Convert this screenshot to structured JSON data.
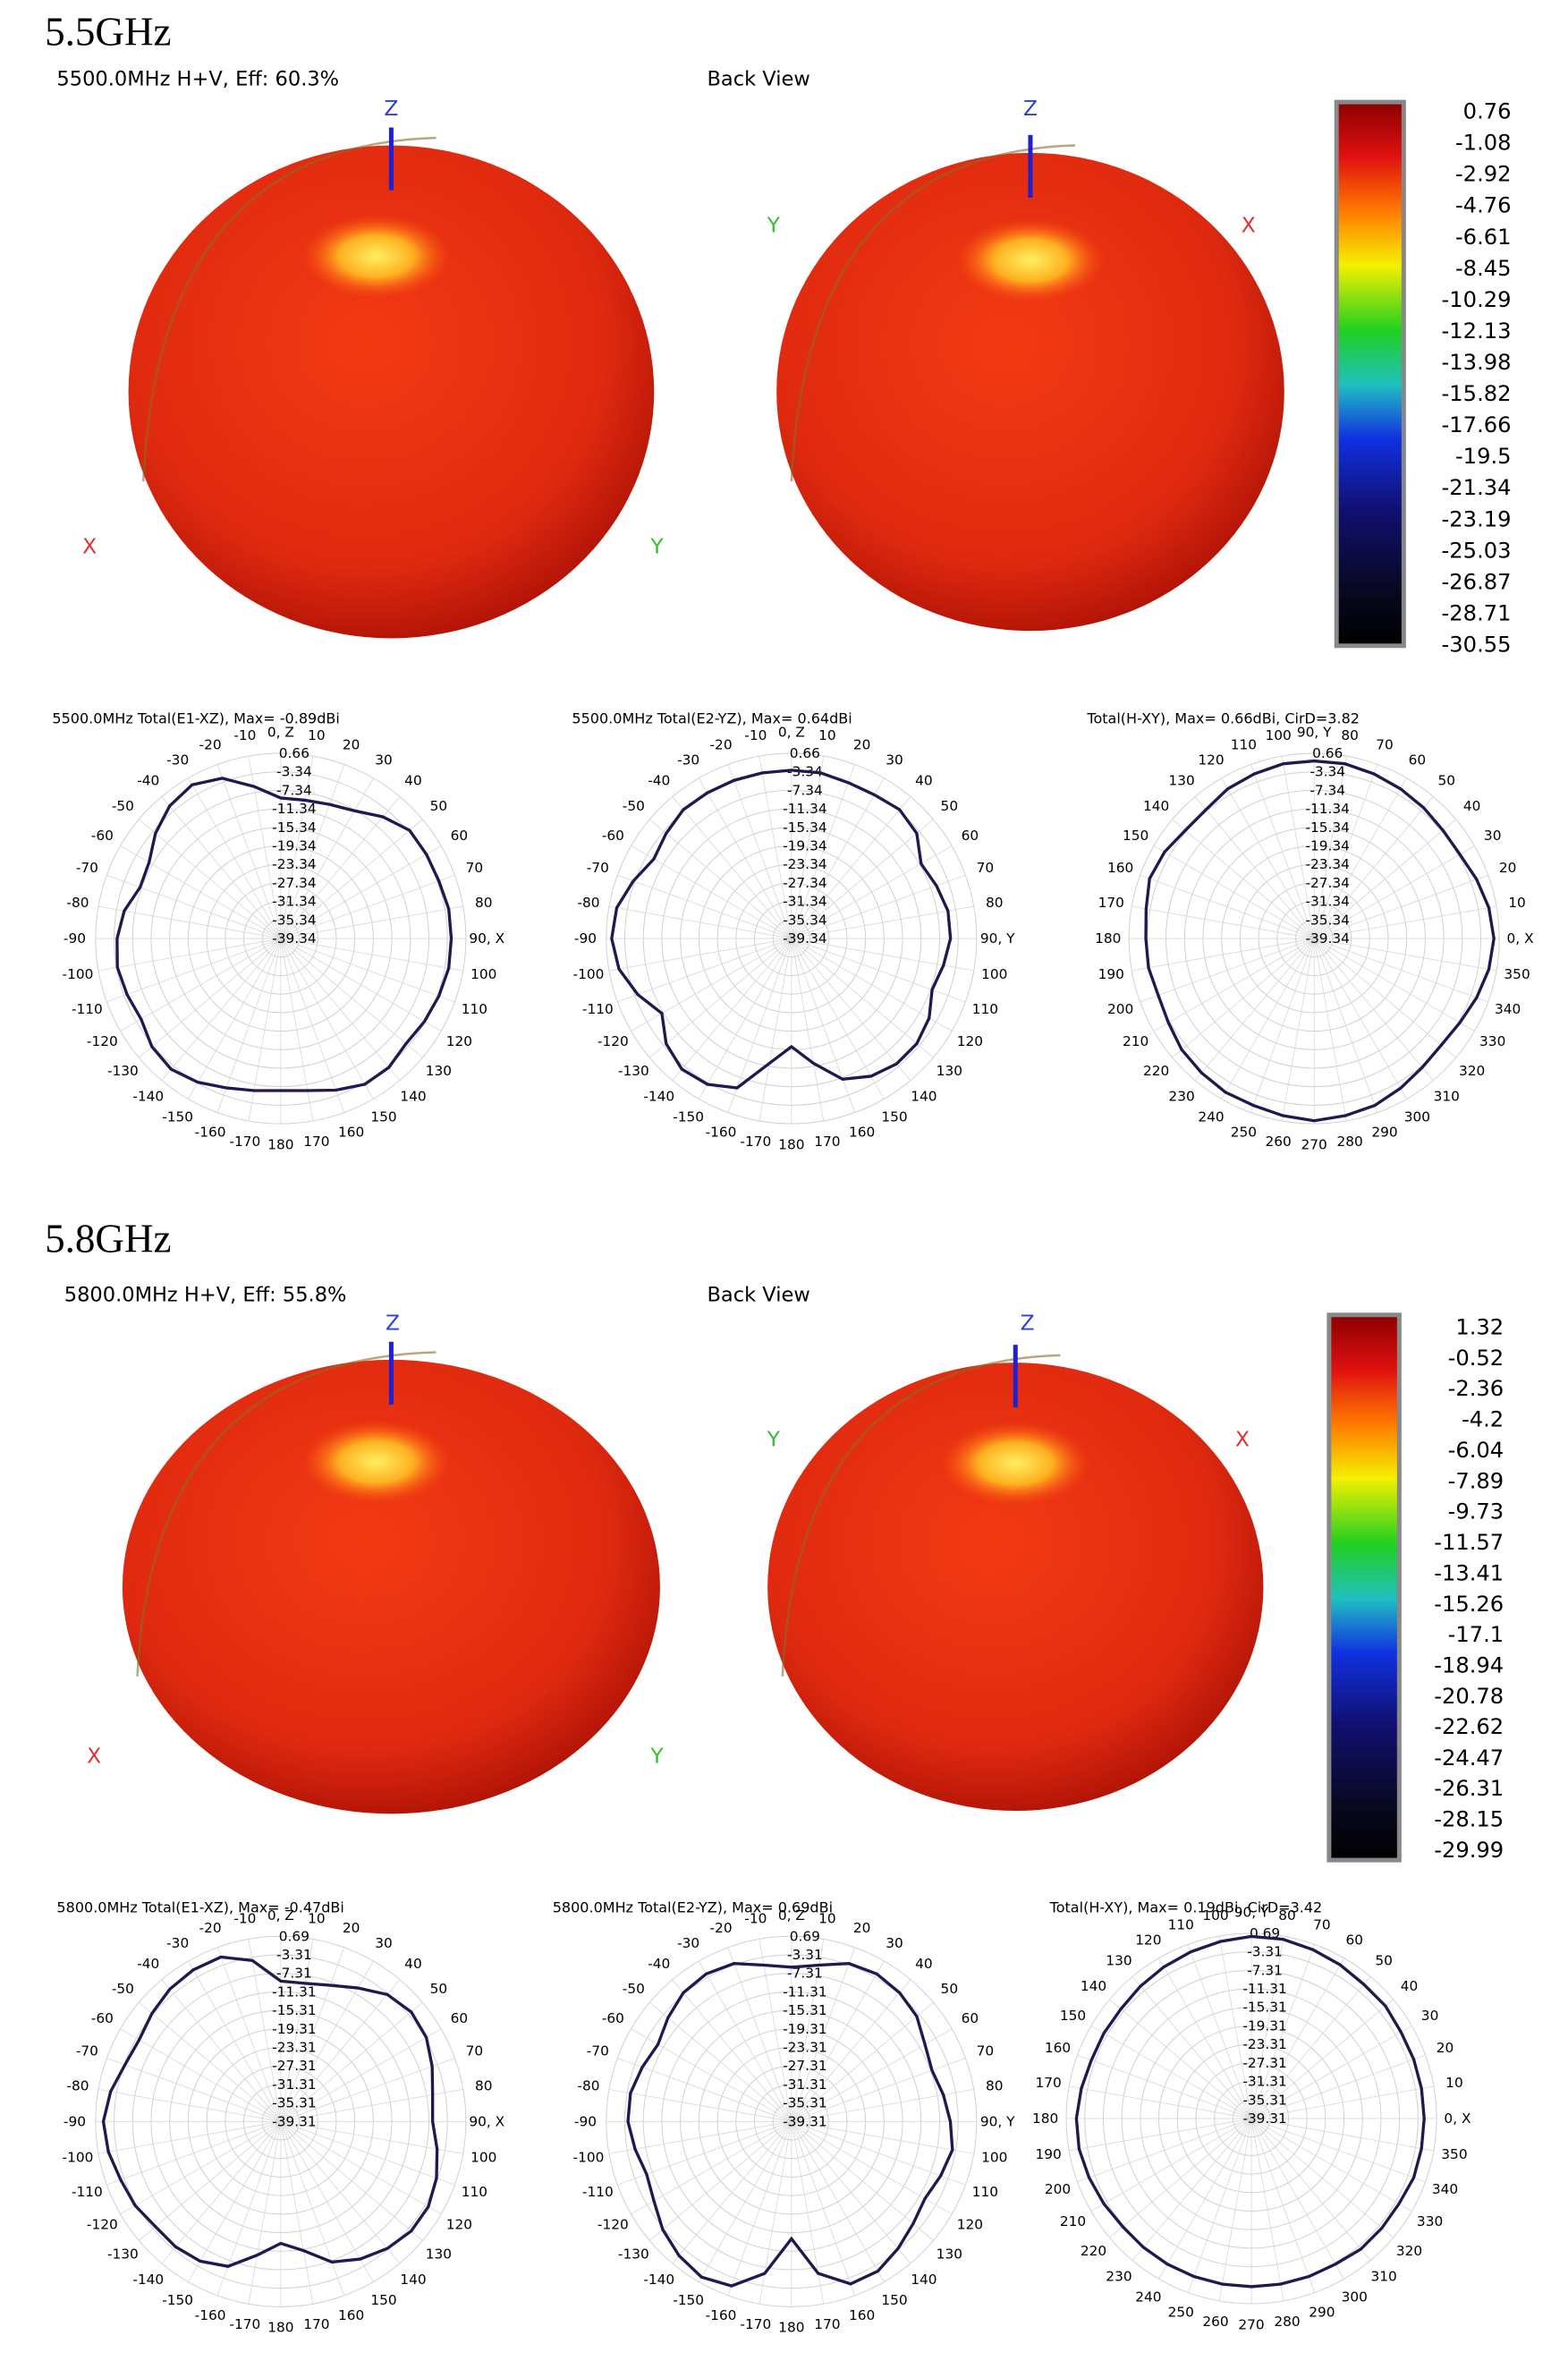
{
  "sections": [
    {
      "heading": "5.5GHz",
      "view_title": "5500.0MHz H+V, Eff: 60.3%",
      "back_title": "Back View",
      "axes": {
        "z": "Z",
        "x": "X",
        "y": "Y"
      },
      "colorbar": {
        "ticks": [
          0.76,
          -1.08,
          -2.92,
          -4.76,
          -6.61,
          -8.45,
          -10.29,
          -12.13,
          -13.98,
          -15.82,
          -17.66,
          -19.5,
          -21.34,
          -23.19,
          -25.03,
          -26.87,
          -28.71,
          -30.55
        ]
      }
    },
    {
      "heading": "5.8GHz",
      "view_title": "5800.0MHz H+V, Eff: 55.8%",
      "back_title": "Back View",
      "axes": {
        "z": "Z",
        "x": "X",
        "y": "Y"
      },
      "colorbar": {
        "ticks": [
          1.32,
          -0.52,
          -2.36,
          -4.2,
          -6.04,
          -7.89,
          -9.73,
          -11.57,
          -13.41,
          -15.26,
          -17.1,
          -18.94,
          -20.78,
          -22.62,
          -24.47,
          -26.31,
          -28.15,
          -29.99
        ]
      }
    }
  ],
  "chart_data": [
    {
      "type": "polar",
      "title": "5500.0MHz Total(E1-XZ), Max= -0.89dBi",
      "zero_location": "top",
      "direction": "clockwise",
      "color": "#1c1a4e",
      "grid": true,
      "rlim": [
        -39.34,
        0.66
      ],
      "rticks": [
        0.66,
        -3.34,
        -7.34,
        -11.34,
        -15.34,
        -19.34,
        -23.34,
        -27.34,
        -31.34,
        -35.34,
        -39.34
      ],
      "angle_ticks": [
        {
          "value": 0,
          "label": "0, Z"
        },
        10,
        20,
        30,
        40,
        50,
        60,
        70,
        80,
        {
          "value": 90,
          "label": "90, X"
        },
        100,
        110,
        120,
        130,
        140,
        150,
        160,
        170,
        180,
        -170,
        -160,
        -150,
        -140,
        -130,
        -120,
        -110,
        -100,
        -90,
        -80,
        -70,
        -60,
        -50,
        -40,
        -30,
        -20,
        -10
      ],
      "theta": [
        0,
        10,
        20,
        30,
        40,
        50,
        60,
        70,
        80,
        90,
        100,
        110,
        120,
        130,
        140,
        150,
        160,
        170,
        180,
        190,
        200,
        210,
        220,
        230,
        240,
        250,
        260,
        270,
        280,
        290,
        300,
        310,
        320,
        330,
        340,
        350
      ],
      "values": [
        -9,
        -9,
        -8.5,
        -7.5,
        -5,
        -3,
        -3,
        -3,
        -2.5,
        -2.5,
        -2.5,
        -3,
        -3.5,
        -4,
        -3,
        -3,
        -4.5,
        -6,
        -6.5,
        -6,
        -5,
        -3.5,
        -2.5,
        -3,
        -4.5,
        -4,
        -3.5,
        -4,
        -5,
        -7,
        -6.5,
        -4,
        -2,
        -1,
        -2.5,
        -6
      ]
    },
    {
      "type": "polar",
      "title": "5500.0MHz Total(E2-YZ), Max= 0.64dBi",
      "zero_location": "top",
      "direction": "clockwise",
      "color": "#1c1a4e",
      "grid": true,
      "rlim": [
        -39.34,
        0.66
      ],
      "rticks": [
        0.66,
        -3.34,
        -7.34,
        -11.34,
        -15.34,
        -19.34,
        -23.34,
        -27.34,
        -31.34,
        -35.34,
        -39.34
      ],
      "angle_ticks": [
        {
          "value": 0,
          "label": "0, Z"
        },
        10,
        20,
        30,
        40,
        50,
        60,
        70,
        80,
        {
          "value": 90,
          "label": "90, Y"
        },
        100,
        110,
        120,
        130,
        140,
        150,
        160,
        170,
        180,
        -170,
        -160,
        -150,
        -140,
        -130,
        -120,
        -110,
        -100,
        -90,
        -80,
        -70,
        -60,
        -50,
        -40,
        -30,
        -20,
        -10
      ],
      "theta": [
        0,
        10,
        20,
        30,
        40,
        50,
        60,
        70,
        80,
        90,
        100,
        110,
        120,
        130,
        140,
        150,
        160,
        170,
        180,
        190,
        200,
        210,
        220,
        230,
        240,
        250,
        260,
        270,
        280,
        290,
        300,
        310,
        320,
        330,
        340,
        350
      ],
      "values": [
        -3,
        -3,
        -3.5,
        -3.5,
        -3,
        -4,
        -7,
        -6,
        -5,
        -5,
        -6,
        -7,
        -5,
        -4,
        -4,
        -5,
        -7,
        -12,
        -16,
        -12,
        -5,
        -3,
        -2.5,
        -4,
        -7,
        -4,
        -1.5,
        -0.5,
        -1,
        -3,
        -5,
        -4,
        -3,
        -3,
        -3,
        -3
      ]
    },
    {
      "type": "polar",
      "title": "Total(H-XY), Max= 0.66dBi, CirD=3.82",
      "zero_location": "right",
      "direction": "counterclockwise",
      "color": "#1c1a4e",
      "grid": true,
      "rlim": [
        -39.34,
        0.66
      ],
      "rticks": [
        0.66,
        -3.34,
        -7.34,
        -11.34,
        -15.34,
        -19.34,
        -23.34,
        -27.34,
        -31.34,
        -35.34,
        -39.34
      ],
      "angle_ticks": [
        {
          "value": 0,
          "label": "0, X"
        },
        10,
        20,
        30,
        40,
        50,
        60,
        70,
        80,
        {
          "value": 90,
          "label": "90, Y"
        },
        100,
        110,
        120,
        130,
        140,
        150,
        160,
        170,
        180,
        190,
        200,
        210,
        220,
        230,
        240,
        250,
        260,
        270,
        280,
        290,
        300,
        310,
        320,
        330,
        340,
        350
      ],
      "theta": [
        0,
        10,
        20,
        30,
        40,
        50,
        60,
        70,
        80,
        90,
        100,
        110,
        120,
        130,
        140,
        150,
        160,
        170,
        180,
        190,
        200,
        210,
        220,
        230,
        240,
        250,
        260,
        270,
        280,
        290,
        300,
        310,
        320,
        330,
        340,
        350
      ],
      "values": [
        -0.5,
        -1,
        -2,
        -3,
        -3,
        -2.5,
        -2,
        -1.5,
        -1,
        -1,
        -1,
        -1.5,
        -2,
        -3,
        -3,
        -2,
        -1.5,
        -2.5,
        -3,
        -3,
        -3.5,
        -3,
        -2,
        -1.5,
        -1,
        -1,
        -0.5,
        0,
        -0.5,
        -1,
        -2,
        -3,
        -3.5,
        -3,
        -2,
        -1
      ]
    },
    {
      "type": "polar",
      "title": "5800.0MHz Total(E1-XZ), Max= -0.47dBi",
      "zero_location": "top",
      "direction": "clockwise",
      "color": "#1c1a4e",
      "grid": true,
      "rlim": [
        -39.31,
        0.69
      ],
      "rticks": [
        0.69,
        -3.31,
        -7.31,
        -11.31,
        -15.31,
        -19.31,
        -23.31,
        -27.31,
        -31.31,
        -35.31,
        -39.31
      ],
      "angle_ticks": [
        {
          "value": 0,
          "label": "0, Z"
        },
        10,
        20,
        30,
        40,
        50,
        60,
        70,
        80,
        {
          "value": 90,
          "label": "90, X"
        },
        100,
        110,
        120,
        130,
        140,
        150,
        160,
        170,
        180,
        -170,
        -160,
        -150,
        -140,
        -130,
        -120,
        -110,
        -100,
        -90,
        -80,
        -70,
        -60,
        -50,
        -40,
        -30,
        -20,
        -10
      ],
      "theta": [
        0,
        10,
        20,
        30,
        40,
        50,
        60,
        70,
        80,
        90,
        100,
        110,
        120,
        130,
        140,
        150,
        160,
        170,
        180,
        190,
        200,
        210,
        220,
        230,
        240,
        250,
        260,
        270,
        280,
        290,
        300,
        310,
        320,
        330,
        340,
        350
      ],
      "values": [
        -9,
        -9,
        -8,
        -6,
        -3.5,
        -2.5,
        -3,
        -4.5,
        -6,
        -6.5,
        -5,
        -3.5,
        -2.5,
        -2.5,
        -3.5,
        -5,
        -7,
        -11,
        -13,
        -10,
        -6,
        -4.5,
        -4,
        -4,
        -3,
        -2.5,
        -1.5,
        -1,
        -2,
        -3.5,
        -4,
        -3,
        -2,
        -1.5,
        -1.5,
        -4
      ]
    },
    {
      "type": "polar",
      "title": "5800.0MHz Total(E2-YZ), Max= 0.69dBi",
      "zero_location": "top",
      "direction": "clockwise",
      "color": "#1c1a4e",
      "grid": true,
      "rlim": [
        -39.31,
        0.69
      ],
      "rticks": [
        0.69,
        -3.31,
        -7.31,
        -11.31,
        -15.31,
        -19.31,
        -23.31,
        -27.31,
        -31.31,
        -35.31,
        -39.31
      ],
      "angle_ticks": [
        {
          "value": 0,
          "label": "0, Z"
        },
        10,
        20,
        30,
        40,
        50,
        60,
        70,
        80,
        {
          "value": 90,
          "label": "90, Y"
        },
        100,
        110,
        120,
        130,
        140,
        150,
        160,
        170,
        180,
        -170,
        -160,
        -150,
        -140,
        -130,
        -120,
        -110,
        -100,
        -90,
        -80,
        -70,
        -60,
        -50,
        -40,
        -30,
        -20,
        -10
      ],
      "theta": [
        0,
        10,
        20,
        30,
        40,
        50,
        60,
        70,
        80,
        90,
        100,
        110,
        120,
        130,
        140,
        150,
        160,
        170,
        180,
        190,
        200,
        210,
        220,
        230,
        240,
        250,
        260,
        270,
        280,
        290,
        300,
        310,
        320,
        330,
        340,
        350
      ],
      "values": [
        -6,
        -5,
        -3,
        -2.5,
        -3,
        -4,
        -6,
        -7,
        -6,
        -5,
        -4,
        -5,
        -6,
        -5,
        -3.5,
        -2,
        -2,
        -6,
        -14,
        -6,
        -1.5,
        -0.5,
        -1.5,
        -3,
        -5,
        -6,
        -5,
        -4,
        -4,
        -5,
        -6,
        -4.5,
        -3,
        -2.5,
        -3,
        -5
      ]
    },
    {
      "type": "polar",
      "title": "Total(H-XY), Max= 0.19dBi, CirD=3.42",
      "zero_location": "right",
      "direction": "counterclockwise",
      "color": "#1c1a4e",
      "grid": true,
      "rlim": [
        -39.31,
        0.69
      ],
      "rticks": [
        0.69,
        -3.31,
        -7.31,
        -11.31,
        -15.31,
        -19.31,
        -23.31,
        -27.31,
        -31.31,
        -35.31,
        -39.31
      ],
      "angle_ticks": [
        {
          "value": 0,
          "label": "0, X"
        },
        10,
        20,
        30,
        40,
        50,
        60,
        70,
        80,
        {
          "value": 90,
          "label": "90, Y"
        },
        100,
        110,
        120,
        130,
        140,
        150,
        160,
        170,
        180,
        190,
        200,
        210,
        220,
        230,
        240,
        250,
        260,
        270,
        280,
        290,
        300,
        310,
        320,
        330,
        340,
        350
      ],
      "theta": [
        0,
        10,
        20,
        30,
        40,
        50,
        60,
        70,
        80,
        90,
        100,
        110,
        120,
        130,
        140,
        150,
        160,
        170,
        180,
        190,
        200,
        210,
        220,
        230,
        240,
        250,
        260,
        270,
        280,
        290,
        300,
        310,
        320,
        330,
        340,
        350
      ],
      "values": [
        -2,
        -2,
        -2,
        -2,
        -1.5,
        -1.5,
        -1,
        -0.5,
        0,
        0,
        -0.5,
        -1,
        -1.5,
        -2,
        -2.5,
        -2.5,
        -2.5,
        -2,
        -1.5,
        -1.5,
        -2,
        -2.5,
        -3,
        -3,
        -3,
        -3,
        -3,
        -3,
        -3,
        -3,
        -3,
        -2.5,
        -2.5,
        -2.5,
        -2,
        -2
      ]
    }
  ]
}
